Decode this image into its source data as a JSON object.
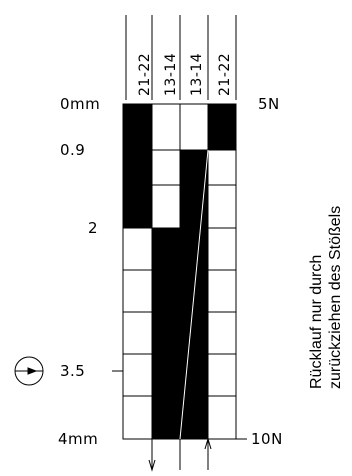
{
  "contacts": [
    "21-22",
    "13-14",
    "13-14",
    "21-22"
  ],
  "stroke_labels": {
    "start": "0mm",
    "p1": "0.9",
    "p2": "2",
    "p3": "3.5",
    "end": "4mm"
  },
  "force_labels": {
    "start": "5N",
    "end": "10N"
  },
  "side_note": {
    "line1": "Rücklauf nur durch",
    "line2": "zurückziehen des Stößels"
  },
  "symbols": [
    "positive-opening-icon",
    "down-arrow-icon",
    "up-arrow-icon"
  ]
}
